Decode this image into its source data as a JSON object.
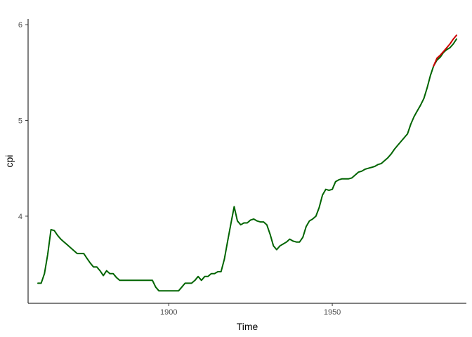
{
  "chart_data": {
    "type": "line",
    "xlabel": "Time",
    "ylabel": "cpi",
    "xlim": [
      1857,
      1991
    ],
    "ylim": [
      3.09,
      6.06
    ],
    "x_ticks": [
      1900,
      1950
    ],
    "y_ticks": [
      4,
      5,
      6
    ],
    "x_tick_labels": [
      "1900",
      "1950"
    ],
    "y_tick_labels": [
      "4",
      "5",
      "6"
    ],
    "grid": false,
    "legend": "none",
    "series": [
      {
        "color": "#006400",
        "x": [
          1860,
          1861,
          1862,
          1863,
          1864,
          1865,
          1866,
          1867,
          1868,
          1869,
          1870,
          1871,
          1872,
          1873,
          1874,
          1875,
          1876,
          1877,
          1878,
          1879,
          1880,
          1881,
          1882,
          1883,
          1884,
          1885,
          1886,
          1887,
          1888,
          1889,
          1890,
          1891,
          1892,
          1893,
          1894,
          1895,
          1896,
          1897,
          1898,
          1899,
          1900,
          1901,
          1902,
          1903,
          1904,
          1905,
          1906,
          1907,
          1908,
          1909,
          1910,
          1911,
          1912,
          1913,
          1914,
          1915,
          1916,
          1917,
          1918,
          1919,
          1920,
          1921,
          1922,
          1923,
          1924,
          1925,
          1926,
          1927,
          1928,
          1929,
          1930,
          1931,
          1932,
          1933,
          1934,
          1935,
          1936,
          1937,
          1938,
          1939,
          1940,
          1941,
          1942,
          1943,
          1944,
          1945,
          1946,
          1947,
          1948,
          1949,
          1950,
          1951,
          1952,
          1953,
          1954,
          1955,
          1956,
          1957,
          1958,
          1959,
          1960,
          1961,
          1962,
          1963,
          1964,
          1965,
          1966,
          1967,
          1968,
          1969,
          1970,
          1971,
          1972,
          1973,
          1974,
          1975,
          1976,
          1977,
          1978,
          1979,
          1980,
          1981,
          1982,
          1983,
          1984,
          1985,
          1986,
          1987,
          1988
        ],
        "y": [
          3.3,
          3.3,
          3.4,
          3.6,
          3.86,
          3.85,
          3.8,
          3.76,
          3.73,
          3.7,
          3.67,
          3.64,
          3.61,
          3.61,
          3.61,
          3.56,
          3.51,
          3.47,
          3.47,
          3.43,
          3.38,
          3.43,
          3.4,
          3.4,
          3.36,
          3.33,
          3.33,
          3.33,
          3.33,
          3.33,
          3.33,
          3.33,
          3.33,
          3.33,
          3.33,
          3.33,
          3.26,
          3.22,
          3.22,
          3.22,
          3.22,
          3.22,
          3.22,
          3.22,
          3.26,
          3.3,
          3.3,
          3.3,
          3.33,
          3.37,
          3.33,
          3.37,
          3.37,
          3.4,
          3.4,
          3.42,
          3.42,
          3.55,
          3.74,
          3.92,
          4.1,
          3.95,
          3.91,
          3.93,
          3.93,
          3.96,
          3.97,
          3.95,
          3.94,
          3.94,
          3.91,
          3.81,
          3.69,
          3.65,
          3.69,
          3.71,
          3.73,
          3.76,
          3.74,
          3.73,
          3.73,
          3.78,
          3.89,
          3.95,
          3.97,
          4.0,
          4.09,
          4.22,
          4.28,
          4.27,
          4.28,
          4.36,
          4.38,
          4.39,
          4.39,
          4.39,
          4.4,
          4.43,
          4.46,
          4.47,
          4.49,
          4.5,
          4.51,
          4.52,
          4.54,
          4.55,
          4.58,
          4.61,
          4.65,
          4.7,
          4.74,
          4.78,
          4.82,
          4.86,
          4.96,
          5.04,
          5.1,
          5.16,
          5.23,
          5.34,
          5.47,
          5.57,
          5.63,
          5.66,
          5.71,
          5.74,
          5.76,
          5.8,
          5.85
        ],
        "values_are_estimated": true
      },
      {
        "color": "#cc0000",
        "x": [
          1981,
          1982,
          1983,
          1984,
          1985,
          1986,
          1987,
          1988
        ],
        "y": [
          5.57,
          5.65,
          5.68,
          5.72,
          5.76,
          5.8,
          5.85,
          5.89
        ],
        "values_are_estimated": true
      }
    ]
  }
}
